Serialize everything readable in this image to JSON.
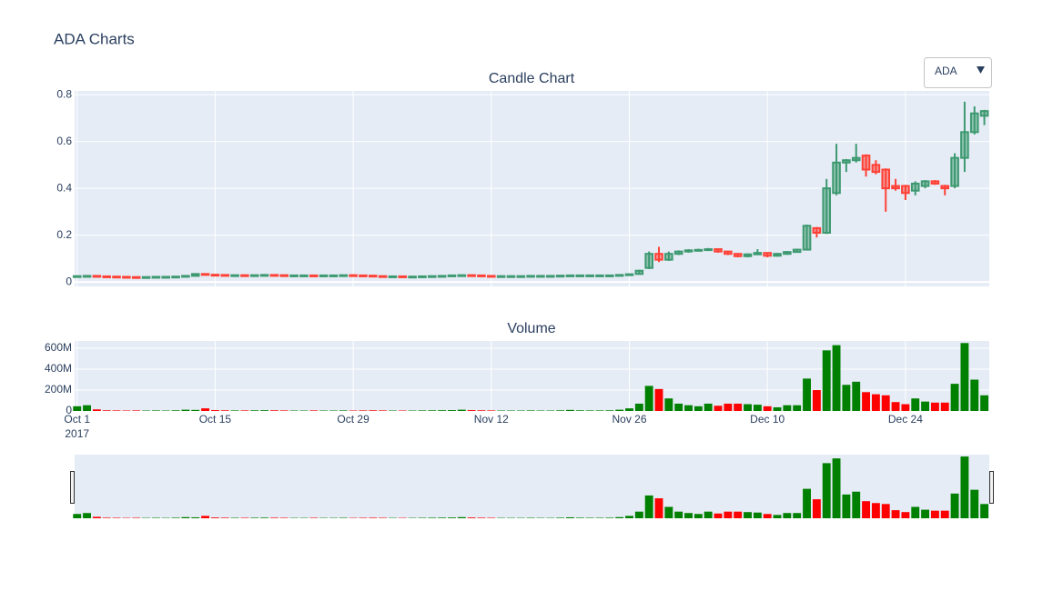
{
  "title": "ADA Charts",
  "dropdown": {
    "selected": "ADA"
  },
  "chart_data": [
    {
      "type": "candlestick",
      "title": "Candle Chart",
      "x": [
        "2017-10-01",
        "2017-10-02",
        "2017-10-03",
        "2017-10-04",
        "2017-10-05",
        "2017-10-06",
        "2017-10-07",
        "2017-10-08",
        "2017-10-09",
        "2017-10-10",
        "2017-10-11",
        "2017-10-12",
        "2017-10-13",
        "2017-10-14",
        "2017-10-15",
        "2017-10-16",
        "2017-10-17",
        "2017-10-18",
        "2017-10-19",
        "2017-10-20",
        "2017-10-21",
        "2017-10-22",
        "2017-10-23",
        "2017-10-24",
        "2017-10-25",
        "2017-10-26",
        "2017-10-27",
        "2017-10-28",
        "2017-10-29",
        "2017-10-30",
        "2017-10-31",
        "2017-11-01",
        "2017-11-02",
        "2017-11-03",
        "2017-11-04",
        "2017-11-05",
        "2017-11-06",
        "2017-11-07",
        "2017-11-08",
        "2017-11-09",
        "2017-11-10",
        "2017-11-11",
        "2017-11-12",
        "2017-11-13",
        "2017-11-14",
        "2017-11-15",
        "2017-11-16",
        "2017-11-17",
        "2017-11-18",
        "2017-11-19",
        "2017-11-20",
        "2017-11-21",
        "2017-11-22",
        "2017-11-23",
        "2017-11-24",
        "2017-11-25",
        "2017-11-26",
        "2017-11-27",
        "2017-11-28",
        "2017-11-29",
        "2017-11-30",
        "2017-12-01",
        "2017-12-02",
        "2017-12-03",
        "2017-12-04",
        "2017-12-05",
        "2017-12-06",
        "2017-12-07",
        "2017-12-08",
        "2017-12-09",
        "2017-12-10",
        "2017-12-11",
        "2017-12-12",
        "2017-12-13",
        "2017-12-14",
        "2017-12-15",
        "2017-12-16",
        "2017-12-17",
        "2017-12-18",
        "2017-12-19",
        "2017-12-20",
        "2017-12-21",
        "2017-12-22",
        "2017-12-23",
        "2017-12-24",
        "2017-12-25",
        "2017-12-26",
        "2017-12-27",
        "2017-12-28",
        "2017-12-29",
        "2017-12-30",
        "2017-12-31",
        "2018-01-01"
      ],
      "open": [
        0.023,
        0.025,
        0.026,
        0.024,
        0.023,
        0.022,
        0.021,
        0.02,
        0.021,
        0.022,
        0.022,
        0.023,
        0.026,
        0.034,
        0.031,
        0.03,
        0.029,
        0.029,
        0.028,
        0.029,
        0.03,
        0.029,
        0.028,
        0.028,
        0.028,
        0.027,
        0.028,
        0.028,
        0.029,
        0.028,
        0.027,
        0.025,
        0.024,
        0.024,
        0.023,
        0.023,
        0.024,
        0.025,
        0.026,
        0.028,
        0.029,
        0.028,
        0.026,
        0.025,
        0.025,
        0.025,
        0.025,
        0.026,
        0.026,
        0.026,
        0.027,
        0.028,
        0.028,
        0.028,
        0.028,
        0.028,
        0.03,
        0.034,
        0.06,
        0.12,
        0.095,
        0.12,
        0.13,
        0.134,
        0.137,
        0.14,
        0.13,
        0.12,
        0.11,
        0.118,
        0.124,
        0.112,
        0.12,
        0.128,
        0.138,
        0.23,
        0.21,
        0.38,
        0.51,
        0.52,
        0.54,
        0.5,
        0.48,
        0.41,
        0.41,
        0.39,
        0.41,
        0.43,
        0.41,
        0.41,
        0.53,
        0.64,
        0.71
      ],
      "high": [
        0.026,
        0.027,
        0.027,
        0.025,
        0.024,
        0.023,
        0.022,
        0.022,
        0.023,
        0.023,
        0.024,
        0.027,
        0.036,
        0.035,
        0.032,
        0.031,
        0.03,
        0.03,
        0.03,
        0.031,
        0.031,
        0.03,
        0.029,
        0.029,
        0.029,
        0.029,
        0.029,
        0.03,
        0.03,
        0.029,
        0.028,
        0.026,
        0.025,
        0.025,
        0.024,
        0.025,
        0.026,
        0.027,
        0.029,
        0.03,
        0.03,
        0.029,
        0.027,
        0.026,
        0.026,
        0.026,
        0.027,
        0.027,
        0.027,
        0.028,
        0.029,
        0.029,
        0.029,
        0.029,
        0.029,
        0.031,
        0.034,
        0.052,
        0.13,
        0.15,
        0.13,
        0.135,
        0.14,
        0.142,
        0.145,
        0.142,
        0.132,
        0.122,
        0.122,
        0.14,
        0.126,
        0.124,
        0.132,
        0.142,
        0.245,
        0.235,
        0.44,
        0.59,
        0.525,
        0.59,
        0.545,
        0.52,
        0.485,
        0.44,
        0.415,
        0.43,
        0.435,
        0.435,
        0.415,
        0.55,
        0.77,
        0.75,
        0.735
      ],
      "low": [
        0.022,
        0.024,
        0.023,
        0.022,
        0.021,
        0.02,
        0.019,
        0.019,
        0.02,
        0.021,
        0.021,
        0.022,
        0.025,
        0.03,
        0.029,
        0.028,
        0.028,
        0.027,
        0.027,
        0.028,
        0.028,
        0.027,
        0.027,
        0.027,
        0.026,
        0.026,
        0.027,
        0.027,
        0.027,
        0.026,
        0.024,
        0.023,
        0.023,
        0.022,
        0.022,
        0.022,
        0.023,
        0.024,
        0.025,
        0.027,
        0.027,
        0.025,
        0.024,
        0.024,
        0.024,
        0.024,
        0.024,
        0.025,
        0.025,
        0.025,
        0.026,
        0.027,
        0.027,
        0.027,
        0.027,
        0.027,
        0.029,
        0.033,
        0.055,
        0.085,
        0.09,
        0.115,
        0.125,
        0.13,
        0.132,
        0.125,
        0.115,
        0.105,
        0.105,
        0.115,
        0.105,
        0.108,
        0.116,
        0.125,
        0.135,
        0.19,
        0.205,
        0.37,
        0.47,
        0.51,
        0.45,
        0.46,
        0.3,
        0.39,
        0.35,
        0.37,
        0.4,
        0.415,
        0.37,
        0.4,
        0.47,
        0.63,
        0.67
      ],
      "close": [
        0.025,
        0.026,
        0.024,
        0.023,
        0.022,
        0.021,
        0.02,
        0.021,
        0.022,
        0.022,
        0.023,
        0.026,
        0.034,
        0.031,
        0.03,
        0.029,
        0.029,
        0.028,
        0.029,
        0.03,
        0.029,
        0.028,
        0.028,
        0.028,
        0.027,
        0.028,
        0.028,
        0.029,
        0.028,
        0.027,
        0.025,
        0.024,
        0.024,
        0.023,
        0.023,
        0.024,
        0.025,
        0.026,
        0.028,
        0.029,
        0.028,
        0.026,
        0.025,
        0.025,
        0.025,
        0.025,
        0.026,
        0.026,
        0.026,
        0.027,
        0.028,
        0.028,
        0.028,
        0.028,
        0.028,
        0.03,
        0.033,
        0.048,
        0.12,
        0.095,
        0.12,
        0.13,
        0.135,
        0.137,
        0.14,
        0.13,
        0.12,
        0.11,
        0.118,
        0.124,
        0.112,
        0.12,
        0.128,
        0.138,
        0.24,
        0.21,
        0.4,
        0.51,
        0.52,
        0.53,
        0.48,
        0.47,
        0.4,
        0.4,
        0.38,
        0.42,
        0.43,
        0.42,
        0.4,
        0.53,
        0.64,
        0.72,
        0.73
      ],
      "increasing_color": "#3d9970",
      "decreasing_color": "#ff4136",
      "xlim": [
        "2017-09-30T18:00:00",
        "2018-01-01T12:00:00"
      ],
      "ylim": [
        -0.019,
        0.816
      ],
      "yticks": [
        0,
        0.2,
        0.4,
        0.6,
        0.8
      ],
      "grid": true
    },
    {
      "type": "bar",
      "title": "Volume",
      "x": [
        "2017-10-01",
        "2017-10-02",
        "2017-10-03",
        "2017-10-04",
        "2017-10-05",
        "2017-10-06",
        "2017-10-07",
        "2017-10-08",
        "2017-10-09",
        "2017-10-10",
        "2017-10-11",
        "2017-10-12",
        "2017-10-13",
        "2017-10-14",
        "2017-10-15",
        "2017-10-16",
        "2017-10-17",
        "2017-10-18",
        "2017-10-19",
        "2017-10-20",
        "2017-10-21",
        "2017-10-22",
        "2017-10-23",
        "2017-10-24",
        "2017-10-25",
        "2017-10-26",
        "2017-10-27",
        "2017-10-28",
        "2017-10-29",
        "2017-10-30",
        "2017-10-31",
        "2017-11-01",
        "2017-11-02",
        "2017-11-03",
        "2017-11-04",
        "2017-11-05",
        "2017-11-06",
        "2017-11-07",
        "2017-11-08",
        "2017-11-09",
        "2017-11-10",
        "2017-11-11",
        "2017-11-12",
        "2017-11-13",
        "2017-11-14",
        "2017-11-15",
        "2017-11-16",
        "2017-11-17",
        "2017-11-18",
        "2017-11-19",
        "2017-11-20",
        "2017-11-21",
        "2017-11-22",
        "2017-11-23",
        "2017-11-24",
        "2017-11-25",
        "2017-11-26",
        "2017-11-27",
        "2017-11-28",
        "2017-11-29",
        "2017-11-30",
        "2017-12-01",
        "2017-12-02",
        "2017-12-03",
        "2017-12-04",
        "2017-12-05",
        "2017-12-06",
        "2017-12-07",
        "2017-12-08",
        "2017-12-09",
        "2017-12-10",
        "2017-12-11",
        "2017-12-12",
        "2017-12-13",
        "2017-12-14",
        "2017-12-15",
        "2017-12-16",
        "2017-12-17",
        "2017-12-18",
        "2017-12-19",
        "2017-12-20",
        "2017-12-21",
        "2017-12-22",
        "2017-12-23",
        "2017-12-24",
        "2017-12-25",
        "2017-12-26",
        "2017-12-27",
        "2017-12-28",
        "2017-12-29",
        "2017-12-30",
        "2017-12-31",
        "2018-01-01"
      ],
      "values": [
        45000000,
        55000000,
        15000000,
        6000000,
        5000000,
        4000000,
        5000000,
        4000000,
        5000000,
        4000000,
        6000000,
        12000000,
        10000000,
        25000000,
        8000000,
        6000000,
        5000000,
        5000000,
        6000000,
        7000000,
        6000000,
        5000000,
        4000000,
        4000000,
        5000000,
        4000000,
        4000000,
        5000000,
        4000000,
        5000000,
        6000000,
        5000000,
        4000000,
        4000000,
        4000000,
        5000000,
        6000000,
        7000000,
        8000000,
        12000000,
        8000000,
        6000000,
        5000000,
        4000000,
        4000000,
        4000000,
        5000000,
        4000000,
        4000000,
        6000000,
        10000000,
        6000000,
        5000000,
        5000000,
        6000000,
        12000000,
        25000000,
        70000000,
        240000000,
        210000000,
        120000000,
        70000000,
        55000000,
        45000000,
        70000000,
        50000000,
        70000000,
        70000000,
        65000000,
        60000000,
        45000000,
        35000000,
        55000000,
        55000000,
        310000000,
        200000000,
        580000000,
        630000000,
        250000000,
        280000000,
        180000000,
        160000000,
        150000000,
        85000000,
        65000000,
        120000000,
        90000000,
        80000000,
        80000000,
        260000000,
        650000000,
        300000000,
        150000000
      ],
      "increasing_color": "#008000",
      "decreasing_color": "#ff0000",
      "xlim": [
        "2017-09-30T18:00:00",
        "2018-01-01T12:00:00"
      ],
      "xticks": [
        {
          "value": "2017-10-01",
          "label": "Oct 1"
        },
        {
          "value": "2017-10-15",
          "label": "Oct 15"
        },
        {
          "value": "2017-10-29",
          "label": "Oct 29"
        },
        {
          "value": "2017-11-12",
          "label": "Nov 12"
        },
        {
          "value": "2017-11-26",
          "label": "Nov 26"
        },
        {
          "value": "2017-12-10",
          "label": "Dec 10"
        },
        {
          "value": "2017-12-24",
          "label": "Dec 24"
        }
      ],
      "x_year_label": "2017",
      "ylim": [
        0,
        670000000
      ],
      "yticks": [
        0,
        {
          "value": 200000000,
          "label": "200M"
        },
        {
          "value": 400000000,
          "label": "400M"
        },
        {
          "value": 600000000,
          "label": "600M"
        }
      ],
      "grid": true,
      "rangeslider": true
    }
  ]
}
